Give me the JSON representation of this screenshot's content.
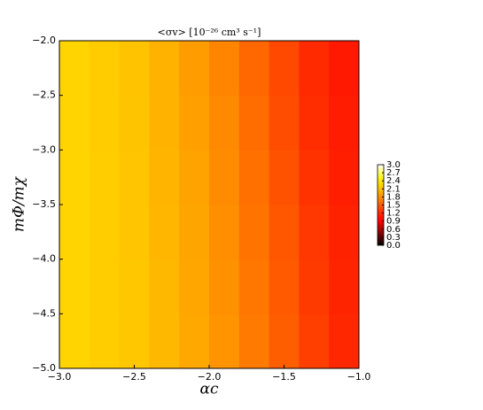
{
  "chart_data": {
    "type": "heatmap",
    "title": "<σv> [10⁻²⁶ cm³ s⁻¹]",
    "x_label": "αc",
    "y_label": "mΦ/mχ",
    "x": [
      -2.9,
      -2.7,
      -2.5,
      -2.3,
      -2.1,
      -1.9,
      -1.7,
      -1.5,
      -1.3,
      -1.1
    ],
    "y": [
      -4.75,
      -4.25,
      -3.75,
      -3.25,
      -2.75,
      -2.25
    ],
    "z": [
      [
        2.25,
        2.2,
        2.15,
        2.05,
        1.95,
        1.82,
        1.68,
        1.52,
        1.33,
        1.18
      ],
      [
        2.25,
        2.2,
        2.15,
        2.05,
        1.94,
        1.8,
        1.66,
        1.5,
        1.3,
        1.16
      ],
      [
        2.25,
        2.2,
        2.14,
        2.04,
        1.93,
        1.79,
        1.64,
        1.48,
        1.28,
        1.14
      ],
      [
        2.25,
        2.2,
        2.14,
        2.03,
        1.92,
        1.78,
        1.62,
        1.45,
        1.25,
        1.12
      ],
      [
        2.25,
        2.19,
        2.13,
        2.02,
        1.9,
        1.76,
        1.6,
        1.42,
        1.22,
        1.1
      ],
      [
        2.25,
        2.19,
        2.12,
        2.01,
        1.88,
        1.74,
        1.57,
        1.39,
        1.2,
        1.08
      ]
    ],
    "xlim": [
      -3.0,
      -1.0
    ],
    "ylim": [
      -5.0,
      -2.0
    ],
    "xticks": [
      {
        "value": -3.0,
        "label": "−3.0"
      },
      {
        "value": -2.5,
        "label": "−2.5"
      },
      {
        "value": -2.0,
        "label": "−2.0"
      },
      {
        "value": -1.5,
        "label": "−1.5"
      },
      {
        "value": -1.0,
        "label": "−1.0"
      }
    ],
    "yticks": [
      {
        "value": -5.0,
        "label": "−5.0"
      },
      {
        "value": -4.5,
        "label": "−4.5"
      },
      {
        "value": -4.0,
        "label": "−4.0"
      },
      {
        "value": -3.5,
        "label": "−3.5"
      },
      {
        "value": -3.0,
        "label": "−3.0"
      },
      {
        "value": -2.5,
        "label": "−2.5"
      },
      {
        "value": -2.0,
        "label": "−2.0"
      }
    ],
    "zlim": [
      0,
      3
    ],
    "zticks": [
      {
        "value": 0,
        "label": "0.0"
      },
      0.3,
      0.6,
      0.9,
      1.2,
      1.5,
      1.8,
      2.1,
      2.4,
      2.7,
      {
        "value": 3,
        "label": "3.0"
      }
    ],
    "colormap": [
      "#000000",
      "#5a0000",
      "#b00000",
      "#ff0000",
      "#ff2a00",
      "#ff5a00",
      "#ff9000",
      "#ffc000",
      "#ffe800",
      "#ffff60",
      "#ffffff"
    ]
  }
}
